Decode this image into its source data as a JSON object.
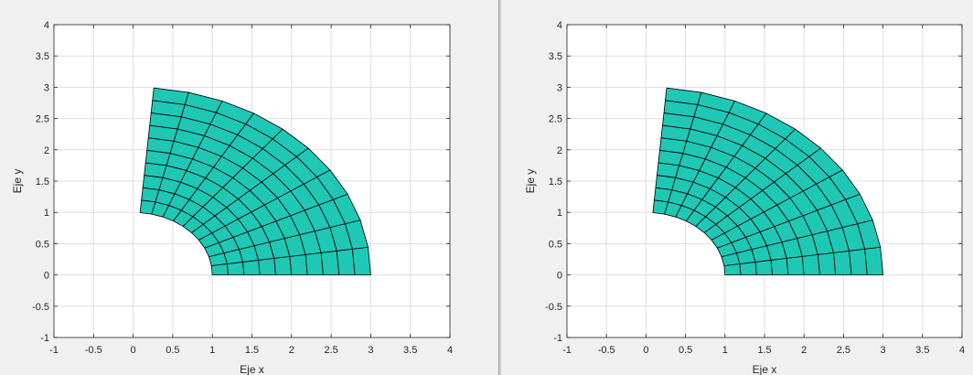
{
  "chart_data": [
    {
      "type": "mesh",
      "shape": "annular-sector",
      "xlabel": "Eje x",
      "ylabel": "Eje y",
      "xlim": [
        -1,
        4
      ],
      "ylim": [
        -1,
        4
      ],
      "xticks": [
        -1,
        -0.5,
        0,
        0.5,
        1,
        1.5,
        2,
        2.5,
        3,
        3.5,
        4
      ],
      "yticks": [
        -1,
        -0.5,
        0,
        0.5,
        1,
        1.5,
        2,
        2.5,
        3,
        3.5,
        4
      ],
      "xtick_labels": [
        "-1",
        "-0.5",
        "0",
        "0.5",
        "1",
        "1.5",
        "2",
        "2.5",
        "3",
        "3.5",
        "4"
      ],
      "ytick_labels": [
        "-1",
        "-0.5",
        "0",
        "0.5",
        "1",
        "1.5",
        "2",
        "2.5",
        "3",
        "3.5",
        "4"
      ],
      "grid": true,
      "inner_radius": 1,
      "outer_radius": 3,
      "angle_start_deg": 0,
      "angle_end_deg": 85,
      "radial_divisions": 10,
      "angular_divisions": 10,
      "face_color": "#1ec8b4",
      "edge_color": "#000000"
    },
    {
      "type": "mesh",
      "shape": "annular-sector",
      "xlabel": "Eje x",
      "ylabel": "Eje y",
      "xlim": [
        -1,
        4
      ],
      "ylim": [
        -1,
        4
      ],
      "xticks": [
        -1,
        -0.5,
        0,
        0.5,
        1,
        1.5,
        2,
        2.5,
        3,
        3.5,
        4
      ],
      "yticks": [
        -1,
        -0.5,
        0,
        0.5,
        1,
        1.5,
        2,
        2.5,
        3,
        3.5,
        4
      ],
      "xtick_labels": [
        "-1",
        "-0.5",
        "0",
        "0.5",
        "1",
        "1.5",
        "2",
        "2.5",
        "3",
        "3.5",
        "4"
      ],
      "ytick_labels": [
        "-1",
        "-0.5",
        "0",
        "0.5",
        "1",
        "1.5",
        "2",
        "2.5",
        "3",
        "3.5",
        "4"
      ],
      "grid": true,
      "inner_radius": 1,
      "outer_radius": 3,
      "angle_start_deg": 0,
      "angle_end_deg": 85,
      "radial_divisions": 10,
      "angular_divisions": 10,
      "face_color": "#1ec8b4",
      "edge_color": "#000000"
    }
  ]
}
